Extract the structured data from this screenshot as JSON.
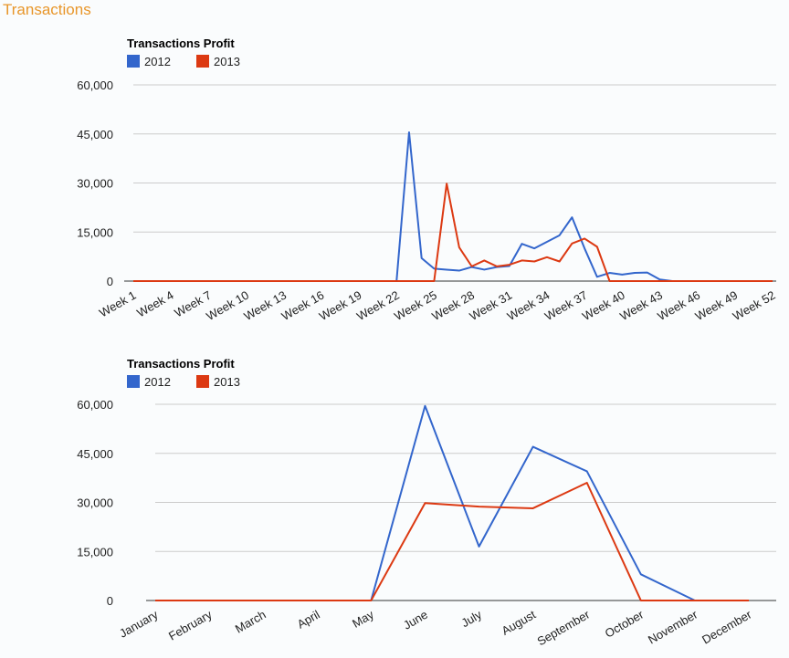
{
  "page_title": "Transactions",
  "colors": {
    "2012": "#3366cc",
    "2013": "#dc3912",
    "title": "#e8962a"
  },
  "chart_data": [
    {
      "type": "line",
      "title": "Transactions Profit",
      "legend_position": "top-left",
      "grid": true,
      "ylim": [
        0,
        60000
      ],
      "yticks": [
        "0",
        "15,000",
        "30,000",
        "45,000",
        "60,000"
      ],
      "ytick_values": [
        0,
        15000,
        30000,
        45000,
        60000
      ],
      "x": [
        "Week 1",
        "Week 2",
        "Week 3",
        "Week 4",
        "Week 5",
        "Week 6",
        "Week 7",
        "Week 8",
        "Week 9",
        "Week 10",
        "Week 11",
        "Week 12",
        "Week 13",
        "Week 14",
        "Week 15",
        "Week 16",
        "Week 17",
        "Week 18",
        "Week 19",
        "Week 20",
        "Week 21",
        "Week 22",
        "Week 23",
        "Week 24",
        "Week 25",
        "Week 26",
        "Week 27",
        "Week 28",
        "Week 29",
        "Week 30",
        "Week 31",
        "Week 32",
        "Week 33",
        "Week 34",
        "Week 35",
        "Week 36",
        "Week 37",
        "Week 38",
        "Week 39",
        "Week 40",
        "Week 41",
        "Week 42",
        "Week 43",
        "Week 44",
        "Week 45",
        "Week 46",
        "Week 47",
        "Week 48",
        "Week 49",
        "Week 50",
        "Week 51",
        "Week 52"
      ],
      "xtick_every": 3,
      "series": [
        {
          "name": "2012",
          "values": [
            0,
            0,
            0,
            0,
            0,
            0,
            0,
            0,
            0,
            0,
            0,
            0,
            0,
            0,
            0,
            0,
            0,
            0,
            0,
            0,
            0,
            0,
            45500,
            7000,
            3800,
            3500,
            3200,
            4300,
            3500,
            4300,
            4600,
            11400,
            10000,
            12000,
            14000,
            19500,
            10000,
            1300,
            2500,
            2000,
            2500,
            2600,
            500,
            0,
            0,
            0,
            0,
            0,
            0,
            0,
            0,
            0
          ]
        },
        {
          "name": "2013",
          "values": [
            0,
            0,
            0,
            0,
            0,
            0,
            0,
            0,
            0,
            0,
            0,
            0,
            0,
            0,
            0,
            0,
            0,
            0,
            0,
            0,
            0,
            0,
            0,
            0,
            0,
            29800,
            10300,
            4500,
            6300,
            4500,
            5000,
            6300,
            6000,
            7300,
            6000,
            11500,
            13000,
            10500,
            0,
            0,
            0,
            0,
            0,
            0,
            0,
            0,
            0,
            0,
            0,
            0,
            0,
            0
          ]
        }
      ]
    },
    {
      "type": "line",
      "title": "Transactions Profit",
      "legend_position": "top-left",
      "grid": true,
      "ylim": [
        0,
        60000
      ],
      "yticks": [
        "0",
        "15,000",
        "30,000",
        "45,000",
        "60,000"
      ],
      "ytick_values": [
        0,
        15000,
        30000,
        45000,
        60000
      ],
      "x": [
        "January",
        "February",
        "March",
        "April",
        "May",
        "June",
        "July",
        "August",
        "September",
        "October",
        "November",
        "December"
      ],
      "xtick_every": 1,
      "series": [
        {
          "name": "2012",
          "values": [
            0,
            0,
            0,
            0,
            0,
            59500,
            16500,
            47000,
            39500,
            8000,
            0,
            0
          ]
        },
        {
          "name": "2013",
          "values": [
            0,
            0,
            0,
            0,
            0,
            29800,
            28700,
            28200,
            36000,
            0,
            0,
            0
          ]
        }
      ]
    }
  ]
}
